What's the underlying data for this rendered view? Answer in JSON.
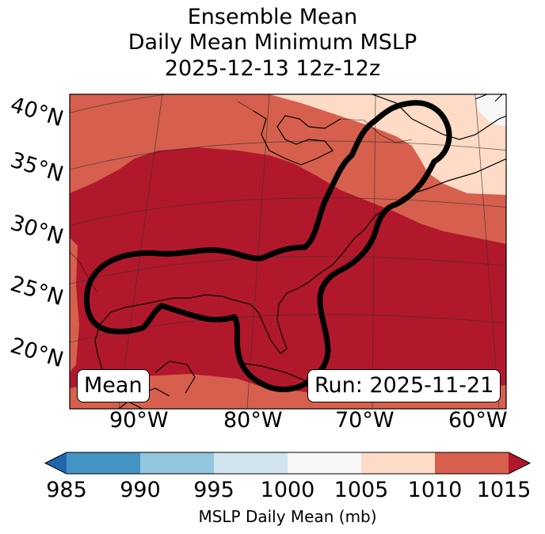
{
  "title": {
    "line1": "Ensemble Mean",
    "line2": "Daily Mean Minimum MSLP",
    "line3": "2025-12-13 12z-12z"
  },
  "map": {
    "latitude_labels": [
      "40°N",
      "35°N",
      "30°N",
      "25°N",
      "20°N"
    ],
    "longitude_labels": [
      "90°W",
      "80°W",
      "70°W",
      "60°W"
    ],
    "region_colors": {
      "lt_1015": "#d6604d",
      "ge_1015": "#b2182b",
      "lt_1010": "#fddbc7",
      "lt_1005": "#f7f7f7"
    },
    "contour_color": "#000000",
    "left_box": "Mean",
    "right_box": "Run: 2025-11-21"
  },
  "colorbar": {
    "ticks": [
      "985",
      "990",
      "995",
      "1000",
      "1005",
      "1010",
      "1015"
    ],
    "colors": [
      "#2166ac",
      "#4393c3",
      "#92c5de",
      "#d1e5f0",
      "#f7f7f7",
      "#fddbc7",
      "#d6604d",
      "#b2182b"
    ],
    "label": "MSLP Daily Mean (mb)"
  }
}
